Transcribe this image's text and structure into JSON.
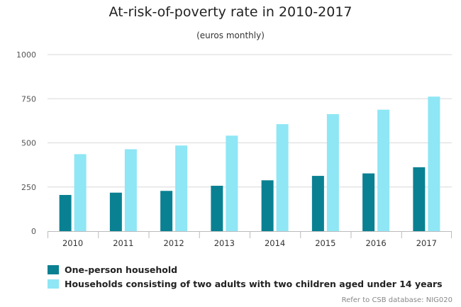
{
  "chart_data": {
    "type": "bar",
    "title": "At-risk-of-poverty rate in 2010-2017",
    "subtitle": "(euros monthly)",
    "categories": [
      "2010",
      "2011",
      "2012",
      "2013",
      "2014",
      "2015",
      "2016",
      "2017"
    ],
    "series": [
      {
        "name": "One-person household",
        "color": "#0a8192",
        "values": [
          205,
          218,
          228,
          257,
          288,
          313,
          327,
          362
        ]
      },
      {
        "name": "Households consisting of two adults with two children aged under 14 years",
        "color": "#8fe6f5",
        "values": [
          436,
          464,
          485,
          541,
          606,
          663,
          688,
          762
        ]
      }
    ],
    "yticks": [
      "0",
      "250",
      "500",
      "750",
      "1000"
    ],
    "ylim": [
      0,
      1000
    ],
    "grid": true,
    "legend_position": "bottom-left"
  },
  "credits": "Refer to CSB database: NIG020"
}
